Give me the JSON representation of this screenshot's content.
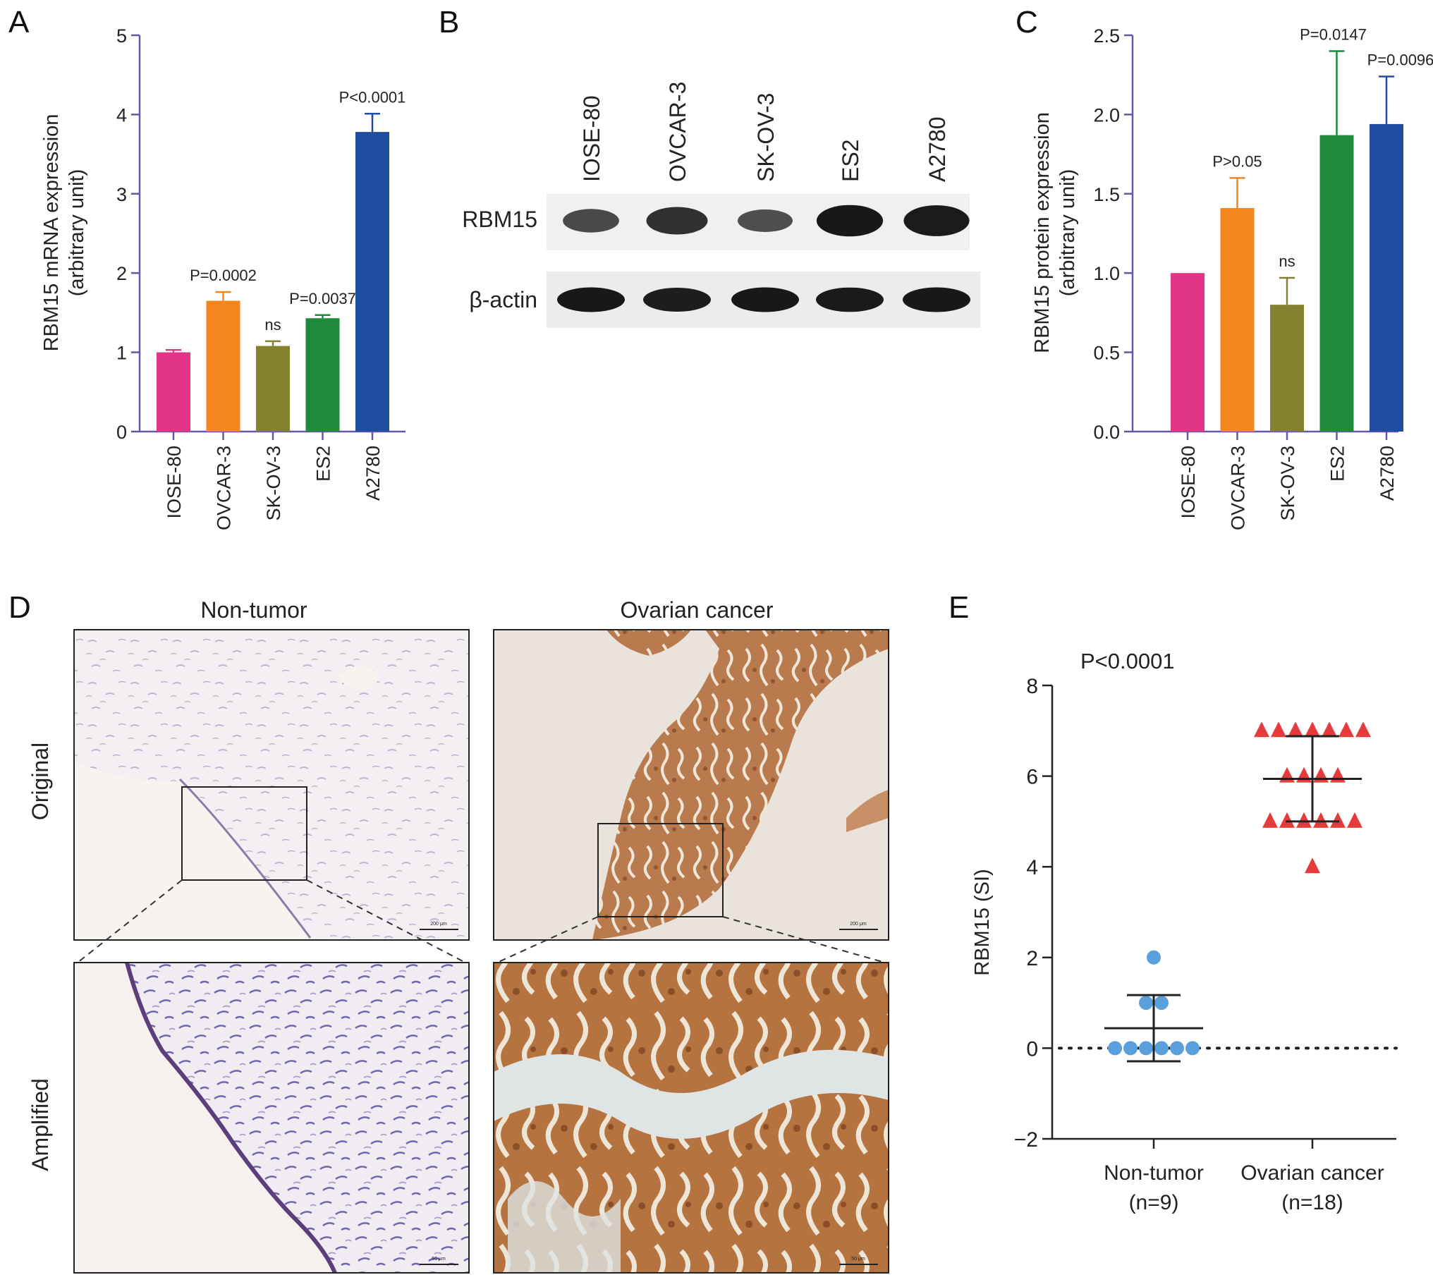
{
  "panels": {
    "A": "A",
    "B": "B",
    "C": "C",
    "D": "D",
    "E": "E"
  },
  "colors": {
    "axis": "#6a56a8",
    "bars": [
      "#e23588",
      "#f3861f",
      "#848230",
      "#1f8a3a",
      "#1f4ea1"
    ],
    "non_tumor": "#5aa0dc",
    "ovarian": "#e63b3b",
    "he_stain": "#b1774c",
    "hematoxylin": "#7a72b2"
  },
  "chart_data": [
    {
      "panel": "A",
      "type": "bar",
      "categories": [
        "IOSE-80",
        "OVCAR-3",
        "SK-OV-3",
        "ES2",
        "A2780"
      ],
      "values": [
        1.0,
        1.65,
        1.08,
        1.43,
        3.78
      ],
      "errors": [
        0.03,
        0.11,
        0.06,
        0.04,
        0.23
      ],
      "annotations": [
        "",
        "P=0.0002",
        "ns",
        "P=0.0037",
        "P<0.0001"
      ],
      "ylabel": "RBM15 mRNA expression",
      "ylabel2": "(arbitrary unit)",
      "ylim": [
        0,
        5
      ],
      "yticks": [
        "0",
        "1",
        "2",
        "3",
        "4",
        "5"
      ]
    },
    {
      "panel": "C",
      "type": "bar",
      "categories": [
        "IOSE-80",
        "OVCAR-3",
        "SK-OV-3",
        "ES2",
        "A2780"
      ],
      "values": [
        1.0,
        1.41,
        0.8,
        1.87,
        1.94
      ],
      "errors": [
        0.0,
        0.19,
        0.17,
        0.53,
        0.3
      ],
      "annotations": [
        "",
        "P>0.05",
        "ns",
        "P=0.0147",
        "P=0.0096"
      ],
      "ylabel": "RBM15 protein expression",
      "ylabel2": "(arbitrary unit)",
      "ylim": [
        0,
        2.5
      ],
      "yticks": [
        "0.0",
        "0.5",
        "1.0",
        "1.5",
        "2.0",
        "2.5"
      ]
    },
    {
      "panel": "E",
      "type": "scatter",
      "categories": [
        "Non-tumor",
        "Ovarian cancer"
      ],
      "category_n": [
        "(n=9)",
        "(n=18)"
      ],
      "series": [
        {
          "values": [
            0,
            0,
            0,
            0,
            0,
            0,
            1,
            1,
            2
          ],
          "mean": 0.44,
          "sd": 0.73
        },
        {
          "values": [
            7,
            7,
            7,
            7,
            7,
            7,
            7,
            6,
            6,
            6,
            6,
            5,
            5,
            5,
            5,
            5,
            5,
            4
          ],
          "mean": 5.94,
          "sd": 0.94
        }
      ],
      "annotation": "P<0.0001",
      "ylabel": "RBM15 (SI)",
      "ylim": [
        -2,
        8
      ],
      "yticks": [
        "−2",
        "0",
        "2",
        "4",
        "6",
        "8"
      ]
    }
  ],
  "western_blot": {
    "lanes": [
      "IOSE-80",
      "OVCAR-3",
      "SK-OV-3",
      "ES2",
      "A2780"
    ],
    "rows": [
      "RBM15",
      "β-actin"
    ],
    "rbm15_intensity": [
      0.55,
      0.75,
      0.5,
      0.95,
      0.92
    ],
    "actin_intensity": [
      0.95,
      0.9,
      0.95,
      0.93,
      0.95
    ]
  },
  "ihc": {
    "columns": [
      "Non-tumor",
      "Ovarian cancer"
    ],
    "rows": [
      "Original",
      "Amplified"
    ],
    "scale_original": "200 μm",
    "scale_amplified": "50 μm"
  }
}
